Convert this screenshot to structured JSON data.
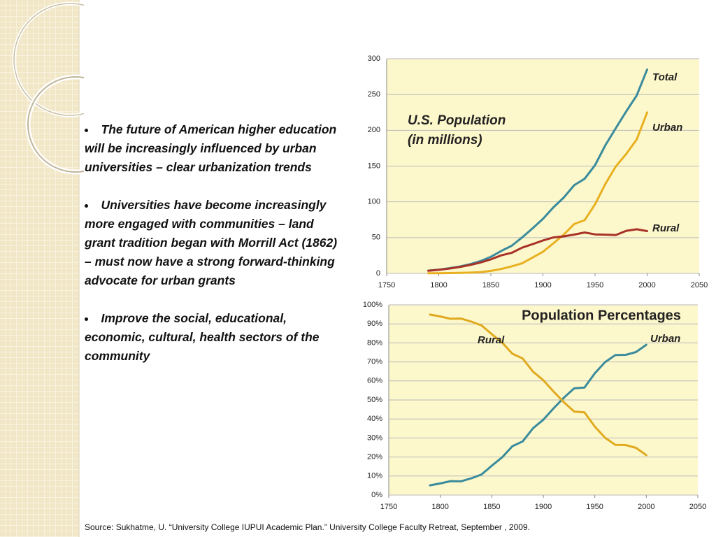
{
  "chart_data": [
    {
      "type": "line",
      "title": "U.S. Population",
      "subtitle": "(in millions)",
      "x": [
        1790,
        1800,
        1810,
        1820,
        1830,
        1840,
        1850,
        1860,
        1870,
        1880,
        1890,
        1900,
        1910,
        1920,
        1930,
        1940,
        1950,
        1960,
        1970,
        1980,
        1990,
        2000
      ],
      "xlim": [
        1750,
        2050
      ],
      "xticks": [
        1750,
        1800,
        1850,
        1900,
        1950,
        2000,
        2050
      ],
      "ylim": [
        0,
        300
      ],
      "yticks": [
        0,
        50,
        100,
        150,
        200,
        250,
        300
      ],
      "grid": true,
      "series": [
        {
          "name": "Total",
          "color": "#3a8b9c",
          "values": [
            3.9,
            5.3,
            7.2,
            9.6,
            12.9,
            17.1,
            23.2,
            31.4,
            38.6,
            50.2,
            62.9,
            76.2,
            92.2,
            106.0,
            123.2,
            132.2,
            151.3,
            179.3,
            203.2,
            226.5,
            248.7,
            285.0
          ]
        },
        {
          "name": "Urban",
          "color": "#e8b020",
          "values": [
            0.2,
            0.3,
            0.5,
            0.7,
            1.1,
            1.8,
            3.5,
            6.2,
            9.9,
            14.1,
            22.1,
            30.2,
            42.0,
            54.2,
            69.0,
            74.4,
            96.5,
            125.3,
            149.6,
            167.1,
            187.1,
            225.0
          ]
        },
        {
          "name": "Rural",
          "color": "#a83228",
          "values": [
            3.7,
            5.0,
            6.7,
            8.9,
            11.7,
            15.2,
            19.6,
            25.2,
            28.7,
            36.0,
            40.8,
            46.0,
            50.2,
            51.8,
            54.2,
            57.2,
            54.5,
            54.1,
            53.6,
            59.5,
            61.7,
            59.1
          ]
        }
      ]
    },
    {
      "type": "line",
      "title": "Population Percentages",
      "x": [
        1790,
        1800,
        1810,
        1820,
        1830,
        1840,
        1850,
        1860,
        1870,
        1880,
        1890,
        1900,
        1910,
        1920,
        1930,
        1940,
        1950,
        1960,
        1970,
        1980,
        1990,
        2000
      ],
      "xlim": [
        1750,
        2050
      ],
      "xticks": [
        1750,
        1800,
        1850,
        1900,
        1950,
        2000,
        2050
      ],
      "ylim": [
        0,
        100
      ],
      "yticks": [
        {
          "value": 0,
          "label": "0%"
        },
        {
          "value": 10,
          "label": "10%"
        },
        {
          "value": 20,
          "label": "20%"
        },
        {
          "value": 30,
          "label": "30%"
        },
        {
          "value": 40,
          "label": "40%"
        },
        {
          "value": 50,
          "label": "50%"
        },
        {
          "value": 60,
          "label": "60%"
        },
        {
          "value": 70,
          "label": "70%"
        },
        {
          "value": 80,
          "label": "80%"
        },
        {
          "value": 90,
          "label": "90%"
        },
        {
          "value": 100,
          "label": "100%"
        }
      ],
      "grid": true,
      "series": [
        {
          "name": "Urban",
          "color": "#3a8b9c",
          "values": [
            5.1,
            6.1,
            7.3,
            7.2,
            8.8,
            10.8,
            15.4,
            19.8,
            25.7,
            28.2,
            35.1,
            39.6,
            45.6,
            51.2,
            56.1,
            56.5,
            64.0,
            69.9,
            73.6,
            73.7,
            75.2,
            79.0
          ]
        },
        {
          "name": "Rural",
          "color": "#e0aa20",
          "values": [
            94.9,
            93.9,
            92.7,
            92.8,
            91.2,
            89.2,
            84.6,
            80.2,
            74.3,
            71.8,
            64.9,
            60.4,
            54.4,
            48.8,
            43.9,
            43.5,
            36.0,
            30.1,
            26.4,
            26.3,
            24.8,
            21.0
          ]
        }
      ]
    }
  ],
  "bullets": [
    "The future of American higher education will be increasingly influenced by urban universities – clear urbanization  trends",
    "Universities have become increasingly more engaged with communities – land grant tradition began with Morrill Act (1862) – must now have a strong forward-thinking advocate for urban grants",
    "Improve the social, educational, economic,  cultural,  health sectors of the community"
  ],
  "source": "Source:  Sukhatme, U. “University College IUPUI Academic Plan.”  University College Faculty Retreat, September , 2009."
}
